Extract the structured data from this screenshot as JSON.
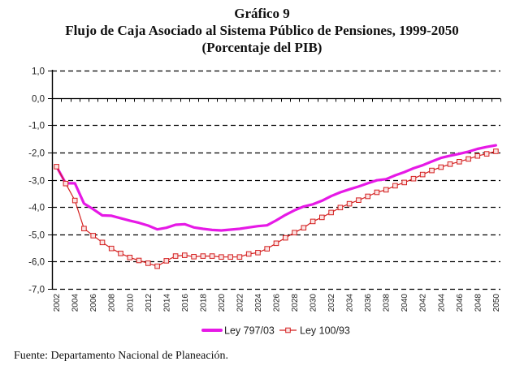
{
  "header": {
    "figure_number": "Gráfico 9",
    "title": "Flujo de Caja Asociado al Sistema Público de Pensiones, 1999-2050",
    "subtitle": "(Porcentaje del PIB)"
  },
  "source_note": "Fuente: Departamento Nacional de Planeación.",
  "chart_data": {
    "type": "line",
    "title": "Flujo de Caja Asociado al Sistema Público de Pensiones, 1999-2050",
    "subtitle": "(Porcentaje del PIB)",
    "xlabel": "",
    "ylabel": "",
    "ylim": [
      -7,
      1
    ],
    "yticks": [
      1,
      0,
      -1,
      -2,
      -3,
      -4,
      -5,
      -6,
      -7
    ],
    "ytick_labels": [
      "1,0",
      "0,0",
      "-1,0",
      "-2,0",
      "-3,0",
      "-4,0",
      "-5,0",
      "-6,0",
      "-7,0"
    ],
    "x": [
      2002,
      2003,
      2004,
      2005,
      2006,
      2007,
      2008,
      2009,
      2010,
      2011,
      2012,
      2013,
      2014,
      2015,
      2016,
      2017,
      2018,
      2019,
      2020,
      2021,
      2022,
      2023,
      2024,
      2025,
      2026,
      2027,
      2028,
      2029,
      2030,
      2031,
      2032,
      2033,
      2034,
      2035,
      2036,
      2037,
      2038,
      2039,
      2040,
      2041,
      2042,
      2043,
      2044,
      2045,
      2046,
      2047,
      2048,
      2049,
      2050
    ],
    "xtick_labels": [
      "2002",
      "2004",
      "2006",
      "2008",
      "2010",
      "2012",
      "2014",
      "2016",
      "2018",
      "2020",
      "2022",
      "2024",
      "2026",
      "2028",
      "2030",
      "2032",
      "2034",
      "2036",
      "2038",
      "2040",
      "2042",
      "2044",
      "2046",
      "2048",
      "2050"
    ],
    "grid": "horizontal dashed",
    "legend_position": "bottom-center",
    "series": [
      {
        "name": "Ley 797/03",
        "color": "#e619e6",
        "marker": "none",
        "values": [
          -2.52,
          -3.13,
          -3.13,
          -3.87,
          -4.08,
          -4.31,
          -4.32,
          -4.41,
          -4.5,
          -4.58,
          -4.68,
          -4.82,
          -4.76,
          -4.65,
          -4.63,
          -4.75,
          -4.8,
          -4.84,
          -4.86,
          -4.83,
          -4.8,
          -4.75,
          -4.7,
          -4.67,
          -4.49,
          -4.29,
          -4.12,
          -3.98,
          -3.9,
          -3.77,
          -3.6,
          -3.46,
          -3.35,
          -3.25,
          -3.13,
          -3.02,
          -2.98,
          -2.84,
          -2.72,
          -2.58,
          -2.47,
          -2.33,
          -2.2,
          -2.12,
          -2.05,
          -1.97,
          -1.87,
          -1.8,
          -1.74
        ]
      },
      {
        "name": "Ley 100/93",
        "color": "#d42020",
        "marker": "square",
        "values": [
          -2.52,
          -3.14,
          -3.76,
          -4.79,
          -5.05,
          -5.3,
          -5.52,
          -5.7,
          -5.85,
          -5.96,
          -6.06,
          -6.17,
          -5.97,
          -5.8,
          -5.77,
          -5.82,
          -5.8,
          -5.8,
          -5.83,
          -5.83,
          -5.83,
          -5.72,
          -5.67,
          -5.53,
          -5.33,
          -5.13,
          -4.94,
          -4.76,
          -4.53,
          -4.38,
          -4.2,
          -4.02,
          -3.88,
          -3.75,
          -3.61,
          -3.46,
          -3.37,
          -3.22,
          -3.1,
          -2.96,
          -2.81,
          -2.66,
          -2.54,
          -2.43,
          -2.34,
          -2.24,
          -2.13,
          -2.05,
          -1.96
        ]
      }
    ]
  }
}
